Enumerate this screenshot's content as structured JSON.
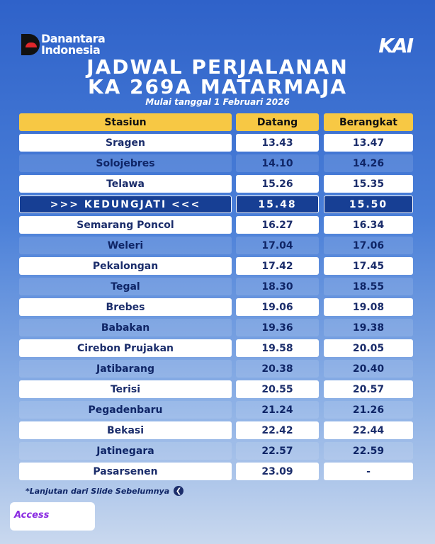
{
  "header": {
    "brand_line1": "Danantara",
    "brand_line2": "Indonesia",
    "operator": "KAI",
    "title_line1": "JADWAL PERJALANAN",
    "title_line2": "KA 269A MATARMAJA",
    "subtitle": "Mulai tanggal 1 Februari 2026"
  },
  "table": {
    "columns": [
      "Stasiun",
      "Datang",
      "Berangkat"
    ],
    "highlight_row": 3,
    "rows": [
      [
        "Sragen",
        "13.43",
        "13.47"
      ],
      [
        "Solojebres",
        "14.10",
        "14.26"
      ],
      [
        "Telawa",
        "15.26",
        "15.35"
      ],
      [
        ">>> KEDUNGJATI <<<",
        "15.48",
        "15.50"
      ],
      [
        "Semarang Poncol",
        "16.27",
        "16.34"
      ],
      [
        "Weleri",
        "17.04",
        "17.06"
      ],
      [
        "Pekalongan",
        "17.42",
        "17.45"
      ],
      [
        "Tegal",
        "18.30",
        "18.55"
      ],
      [
        "Brebes",
        "19.06",
        "19.08"
      ],
      [
        "Babakan",
        "19.36",
        "19.38"
      ],
      [
        "Cirebon Prujakan",
        "19.58",
        "20.05"
      ],
      [
        "Jatibarang",
        "20.38",
        "20.40"
      ],
      [
        "Terisi",
        "20.55",
        "20.57"
      ],
      [
        "Pegadenbaru",
        "21.24",
        "21.26"
      ],
      [
        "Bekasi",
        "22.42",
        "22.44"
      ],
      [
        "Jatinegara",
        "22.57",
        "22.59"
      ],
      [
        "Pasarsenen",
        "23.09",
        "-"
      ]
    ]
  },
  "footer": {
    "note": "*Lanjutan dari Slide Sebelumnya",
    "app": "Access"
  }
}
